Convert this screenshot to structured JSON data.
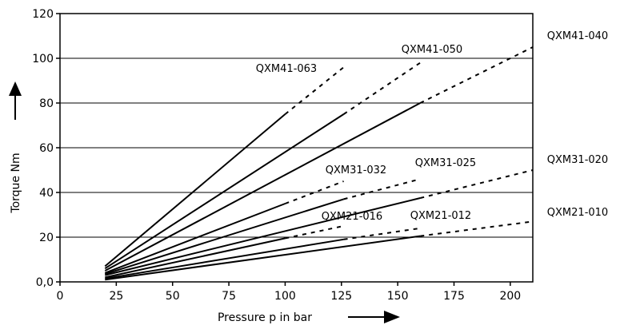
{
  "chart_data": {
    "type": "line",
    "xlabel": "Pressure p in bar",
    "ylabel": "Torque Nm",
    "xlim": [
      0,
      210
    ],
    "ylim": [
      0,
      120
    ],
    "x_ticks": [
      "0",
      "25",
      "50",
      "75",
      "100",
      "125",
      "150",
      "175",
      "200"
    ],
    "y_ticks": [
      "0,0",
      "20",
      "40",
      "60",
      "80",
      "100",
      "120"
    ],
    "grid": "horizontal",
    "series": [
      {
        "name": "QXM41-063",
        "solid": [
          [
            20,
            7
          ],
          [
            100,
            75
          ]
        ],
        "dashed": [
          [
            100,
            75
          ],
          [
            126,
            96
          ]
        ]
      },
      {
        "name": "QXM41-050",
        "solid": [
          [
            20,
            6
          ],
          [
            126,
            75
          ]
        ],
        "dashed": [
          [
            126,
            75
          ],
          [
            160,
            98
          ]
        ]
      },
      {
        "name": "QXM41-040",
        "solid": [
          [
            20,
            5
          ],
          [
            160,
            80
          ]
        ],
        "dashed": [
          [
            160,
            80
          ],
          [
            210,
            105
          ]
        ]
      },
      {
        "name": "QXM31-032",
        "solid": [
          [
            20,
            4
          ],
          [
            100,
            35
          ]
        ],
        "dashed": [
          [
            100,
            35
          ],
          [
            126,
            45
          ]
        ]
      },
      {
        "name": "QXM31-025",
        "solid": [
          [
            20,
            3.5
          ],
          [
            126,
            37
          ]
        ],
        "dashed": [
          [
            126,
            37
          ],
          [
            160,
            46
          ]
        ]
      },
      {
        "name": "QXM31-020",
        "solid": [
          [
            20,
            3
          ],
          [
            160,
            37.5
          ]
        ],
        "dashed": [
          [
            160,
            37.5
          ],
          [
            210,
            50
          ]
        ]
      },
      {
        "name": "QXM21-016",
        "solid": [
          [
            20,
            2
          ],
          [
            100,
            19.5
          ]
        ],
        "dashed": [
          [
            100,
            19.5
          ],
          [
            126,
            25
          ]
        ]
      },
      {
        "name": "QXM21-012",
        "solid": [
          [
            20,
            1.5
          ],
          [
            126,
            19
          ]
        ],
        "dashed": [
          [
            126,
            19
          ],
          [
            160,
            24
          ]
        ]
      },
      {
        "name": "QXM21-010",
        "solid": [
          [
            20,
            1
          ],
          [
            160,
            20.5
          ]
        ],
        "dashed": [
          [
            160,
            20.5
          ],
          [
            210,
            27
          ]
        ]
      }
    ]
  }
}
